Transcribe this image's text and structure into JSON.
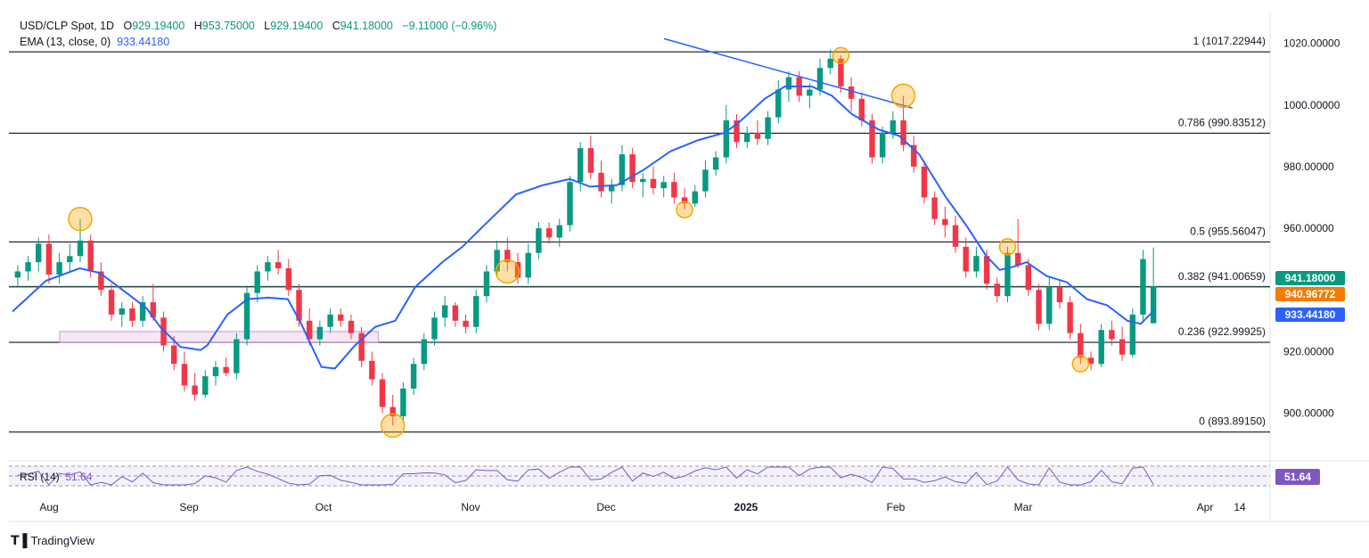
{
  "header": {
    "symbol_line": "USD/CLP Spot, 1D",
    "o_label": "O",
    "o_value": "929.19400",
    "h_label": "H",
    "h_value": "953.75000",
    "l_label": "L",
    "l_value": "929.19400",
    "c_label": "C",
    "c_value": "941.18000",
    "change": "−9.11000 (−0.96%)",
    "ema_label": "EMA (13, close, 0)",
    "ema_value": "933.44180"
  },
  "rsi": {
    "label": "RSI (14)",
    "value": "51.64",
    "tag": "51.64"
  },
  "price_tags": {
    "close": "941.18000",
    "mid": "940.96772",
    "ema": "933.44180"
  },
  "colors": {
    "up": "#089981",
    "down": "#f23645",
    "ema": "#2962ff",
    "rsi": "#7e57c2",
    "circle": "#f7a600",
    "tag_mid": "#f57c00"
  },
  "brand": {
    "name": "TradingView"
  },
  "chart_data": {
    "type": "candlestick",
    "y_axis_ticks": [
      "1020.00000",
      "1000.00000",
      "980.00000",
      "960.00000",
      "920.00000",
      "900.00000"
    ],
    "x_axis_labels": [
      "Aug",
      "Sep",
      "Oct",
      "Nov",
      "Dec",
      "2025",
      "Feb",
      "Mar",
      "Apr",
      "14"
    ],
    "ylim": [
      886,
      1030
    ],
    "fib_levels": [
      {
        "label": "1 (1017.22944)",
        "value": 1017.22944
      },
      {
        "label": "0.786 (990.83512)",
        "value": 990.83512
      },
      {
        "label": "0.5 (955.56047)",
        "value": 955.56047
      },
      {
        "label": "0.382 (941.00659)",
        "value": 941.00659
      },
      {
        "label": "0.236 (922.99925)",
        "value": 922.99925
      },
      {
        "label": "0 (893.89150)",
        "value": 893.8915
      }
    ],
    "close_line": 941.18,
    "support_box": {
      "x_from": 0.15,
      "x_to": 0.55,
      "y_low": 923,
      "y_high": 926.5
    },
    "trendline": {
      "from": [
        0.97,
        1021.5
      ],
      "to": [
        1.34,
        999
      ]
    },
    "ema_path": [
      [
        0,
        933
      ],
      [
        0.05,
        943
      ],
      [
        0.1,
        947
      ],
      [
        0.13,
        945.5
      ],
      [
        0.17,
        939
      ],
      [
        0.2,
        934
      ],
      [
        0.22,
        928
      ],
      [
        0.25,
        921.5
      ],
      [
        0.28,
        920.5
      ],
      [
        0.29,
        922
      ],
      [
        0.32,
        932
      ],
      [
        0.35,
        937
      ],
      [
        0.38,
        937.5
      ],
      [
        0.41,
        937
      ],
      [
        0.43,
        929
      ],
      [
        0.46,
        915
      ],
      [
        0.48,
        914.5
      ],
      [
        0.51,
        922
      ],
      [
        0.54,
        928
      ],
      [
        0.57,
        930
      ],
      [
        0.6,
        941
      ],
      [
        0.64,
        949
      ],
      [
        0.67,
        954
      ],
      [
        0.7,
        960.5
      ],
      [
        0.75,
        971
      ],
      [
        0.79,
        974
      ],
      [
        0.83,
        976
      ],
      [
        0.86,
        973.5
      ],
      [
        0.9,
        974
      ],
      [
        0.94,
        979
      ],
      [
        0.98,
        985
      ],
      [
        1.02,
        988.5
      ],
      [
        1.06,
        991
      ],
      [
        1.08,
        994
      ],
      [
        1.12,
        1002
      ],
      [
        1.15,
        1006
      ],
      [
        1.19,
        1006
      ],
      [
        1.22,
        1003
      ],
      [
        1.25,
        997
      ],
      [
        1.29,
        992
      ],
      [
        1.32,
        990
      ],
      [
        1.35,
        984
      ],
      [
        1.39,
        970
      ],
      [
        1.42,
        961
      ],
      [
        1.45,
        951
      ],
      [
        1.47,
        946.5
      ],
      [
        1.49,
        947.5
      ],
      [
        1.51,
        949
      ],
      [
        1.54,
        944.5
      ],
      [
        1.57,
        942.5
      ],
      [
        1.6,
        937
      ],
      [
        1.63,
        935
      ],
      [
        1.66,
        930
      ],
      [
        1.68,
        929
      ],
      [
        1.7,
        933.4
      ]
    ],
    "candles": [
      {
        "o": 944,
        "h": 948,
        "l": 941,
        "c": 946
      },
      {
        "o": 946,
        "h": 951,
        "l": 943,
        "c": 949
      },
      {
        "o": 949,
        "h": 957,
        "l": 946,
        "c": 955
      },
      {
        "o": 955,
        "h": 958,
        "l": 942,
        "c": 945
      },
      {
        "o": 945,
        "h": 952,
        "l": 942,
        "c": 949
      },
      {
        "o": 949,
        "h": 955,
        "l": 946,
        "c": 951
      },
      {
        "o": 951,
        "h": 963,
        "l": 949,
        "c": 956
      },
      {
        "o": 956,
        "h": 958,
        "l": 944,
        "c": 946
      },
      {
        "o": 946,
        "h": 949,
        "l": 938,
        "c": 940
      },
      {
        "o": 940,
        "h": 942,
        "l": 930,
        "c": 932
      },
      {
        "o": 932,
        "h": 936,
        "l": 928,
        "c": 934
      },
      {
        "o": 934,
        "h": 936,
        "l": 928,
        "c": 930
      },
      {
        "o": 930,
        "h": 938,
        "l": 928,
        "c": 936
      },
      {
        "o": 936,
        "h": 942,
        "l": 930,
        "c": 931
      },
      {
        "o": 931,
        "h": 933,
        "l": 920,
        "c": 922
      },
      {
        "o": 922,
        "h": 925,
        "l": 914,
        "c": 916
      },
      {
        "o": 916,
        "h": 920,
        "l": 907,
        "c": 909
      },
      {
        "o": 909,
        "h": 913,
        "l": 904,
        "c": 906
      },
      {
        "o": 906,
        "h": 914,
        "l": 905,
        "c": 912
      },
      {
        "o": 912,
        "h": 917,
        "l": 909,
        "c": 915
      },
      {
        "o": 915,
        "h": 918,
        "l": 912,
        "c": 913
      },
      {
        "o": 913,
        "h": 926,
        "l": 911,
        "c": 924
      },
      {
        "o": 924,
        "h": 941,
        "l": 922,
        "c": 939
      },
      {
        "o": 939,
        "h": 948,
        "l": 936,
        "c": 946
      },
      {
        "o": 946,
        "h": 951,
        "l": 943,
        "c": 949
      },
      {
        "o": 949,
        "h": 953,
        "l": 945,
        "c": 947
      },
      {
        "o": 947,
        "h": 950,
        "l": 938,
        "c": 940
      },
      {
        "o": 940,
        "h": 942,
        "l": 928,
        "c": 930
      },
      {
        "o": 930,
        "h": 934,
        "l": 922,
        "c": 924
      },
      {
        "o": 924,
        "h": 930,
        "l": 922,
        "c": 928
      },
      {
        "o": 928,
        "h": 934,
        "l": 926,
        "c": 932
      },
      {
        "o": 932,
        "h": 934,
        "l": 928,
        "c": 930
      },
      {
        "o": 930,
        "h": 932,
        "l": 924,
        "c": 926
      },
      {
        "o": 926,
        "h": 928,
        "l": 915,
        "c": 917
      },
      {
        "o": 917,
        "h": 920,
        "l": 909,
        "c": 911
      },
      {
        "o": 911,
        "h": 913,
        "l": 900,
        "c": 902
      },
      {
        "o": 902,
        "h": 906,
        "l": 896,
        "c": 899
      },
      {
        "o": 899,
        "h": 910,
        "l": 897,
        "c": 908
      },
      {
        "o": 908,
        "h": 918,
        "l": 906,
        "c": 916
      },
      {
        "o": 916,
        "h": 926,
        "l": 914,
        "c": 924
      },
      {
        "o": 924,
        "h": 933,
        "l": 922,
        "c": 931
      },
      {
        "o": 931,
        "h": 938,
        "l": 928,
        "c": 935
      },
      {
        "o": 935,
        "h": 936,
        "l": 928,
        "c": 930
      },
      {
        "o": 930,
        "h": 932,
        "l": 926,
        "c": 928
      },
      {
        "o": 928,
        "h": 940,
        "l": 926,
        "c": 938
      },
      {
        "o": 938,
        "h": 948,
        "l": 936,
        "c": 946
      },
      {
        "o": 946,
        "h": 956,
        "l": 944,
        "c": 953
      },
      {
        "o": 953,
        "h": 957,
        "l": 946,
        "c": 949
      },
      {
        "o": 949,
        "h": 952,
        "l": 942,
        "c": 944
      },
      {
        "o": 944,
        "h": 955,
        "l": 942,
        "c": 952
      },
      {
        "o": 952,
        "h": 962,
        "l": 950,
        "c": 960
      },
      {
        "o": 960,
        "h": 962,
        "l": 955,
        "c": 957
      },
      {
        "o": 957,
        "h": 963,
        "l": 954,
        "c": 961
      },
      {
        "o": 961,
        "h": 977,
        "l": 959,
        "c": 975
      },
      {
        "o": 975,
        "h": 988,
        "l": 972,
        "c": 986
      },
      {
        "o": 986,
        "h": 990,
        "l": 976,
        "c": 978
      },
      {
        "o": 978,
        "h": 982,
        "l": 970,
        "c": 972
      },
      {
        "o": 972,
        "h": 976,
        "l": 968,
        "c": 974
      },
      {
        "o": 974,
        "h": 987,
        "l": 972,
        "c": 984
      },
      {
        "o": 984,
        "h": 986,
        "l": 973,
        "c": 975
      },
      {
        "o": 975,
        "h": 978,
        "l": 970,
        "c": 976
      },
      {
        "o": 976,
        "h": 980,
        "l": 971,
        "c": 973
      },
      {
        "o": 973,
        "h": 977,
        "l": 970,
        "c": 975
      },
      {
        "o": 975,
        "h": 978,
        "l": 968,
        "c": 970
      },
      {
        "o": 970,
        "h": 973,
        "l": 966,
        "c": 968
      },
      {
        "o": 968,
        "h": 974,
        "l": 967,
        "c": 972
      },
      {
        "o": 972,
        "h": 982,
        "l": 970,
        "c": 979
      },
      {
        "o": 979,
        "h": 985,
        "l": 977,
        "c": 983
      },
      {
        "o": 983,
        "h": 1000,
        "l": 981,
        "c": 995
      },
      {
        "o": 995,
        "h": 997,
        "l": 986,
        "c": 988
      },
      {
        "o": 988,
        "h": 993,
        "l": 986,
        "c": 991
      },
      {
        "o": 991,
        "h": 995,
        "l": 987,
        "c": 989
      },
      {
        "o": 989,
        "h": 998,
        "l": 987,
        "c": 996
      },
      {
        "o": 996,
        "h": 1008,
        "l": 994,
        "c": 1005
      },
      {
        "o": 1005,
        "h": 1011,
        "l": 1001,
        "c": 1009
      },
      {
        "o": 1009,
        "h": 1011,
        "l": 1001,
        "c": 1003
      },
      {
        "o": 1003,
        "h": 1007,
        "l": 999,
        "c": 1005
      },
      {
        "o": 1005,
        "h": 1015,
        "l": 1003,
        "c": 1012
      },
      {
        "o": 1012,
        "h": 1018,
        "l": 1010,
        "c": 1015
      },
      {
        "o": 1015,
        "h": 1016,
        "l": 1004,
        "c": 1006
      },
      {
        "o": 1006,
        "h": 1009,
        "l": 998,
        "c": 1002
      },
      {
        "o": 1002,
        "h": 1004,
        "l": 993,
        "c": 995
      },
      {
        "o": 995,
        "h": 997,
        "l": 981,
        "c": 983
      },
      {
        "o": 983,
        "h": 993,
        "l": 981,
        "c": 991
      },
      {
        "o": 991,
        "h": 998,
        "l": 989,
        "c": 995
      },
      {
        "o": 995,
        "h": 1003,
        "l": 985,
        "c": 987
      },
      {
        "o": 987,
        "h": 990,
        "l": 978,
        "c": 980
      },
      {
        "o": 980,
        "h": 982,
        "l": 968,
        "c": 970
      },
      {
        "o": 970,
        "h": 972,
        "l": 961,
        "c": 963
      },
      {
        "o": 963,
        "h": 967,
        "l": 957,
        "c": 961
      },
      {
        "o": 961,
        "h": 964,
        "l": 952,
        "c": 954
      },
      {
        "o": 954,
        "h": 957,
        "l": 944,
        "c": 946
      },
      {
        "o": 946,
        "h": 954,
        "l": 944,
        "c": 951
      },
      {
        "o": 951,
        "h": 953,
        "l": 940,
        "c": 942
      },
      {
        "o": 942,
        "h": 944,
        "l": 936,
        "c": 938
      },
      {
        "o": 938,
        "h": 954,
        "l": 936,
        "c": 952
      },
      {
        "o": 952,
        "h": 963,
        "l": 947,
        "c": 948
      },
      {
        "o": 948,
        "h": 950,
        "l": 938,
        "c": 940
      },
      {
        "o": 940,
        "h": 942,
        "l": 927,
        "c": 929
      },
      {
        "o": 929,
        "h": 944,
        "l": 927,
        "c": 941
      },
      {
        "o": 941,
        "h": 943,
        "l": 934,
        "c": 936
      },
      {
        "o": 936,
        "h": 938,
        "l": 924,
        "c": 926
      },
      {
        "o": 926,
        "h": 929,
        "l": 916,
        "c": 918
      },
      {
        "o": 918,
        "h": 920,
        "l": 914,
        "c": 916
      },
      {
        "o": 916,
        "h": 929,
        "l": 915,
        "c": 927
      },
      {
        "o": 927,
        "h": 930,
        "l": 922,
        "c": 924
      },
      {
        "o": 924,
        "h": 928,
        "l": 917,
        "c": 919
      },
      {
        "o": 919,
        "h": 934,
        "l": 918,
        "c": 932
      },
      {
        "o": 932,
        "h": 953,
        "l": 930,
        "c": 950
      },
      {
        "o": 929.194,
        "h": 953.75,
        "l": 929.194,
        "c": 941.18
      }
    ],
    "markers": [
      {
        "candle": 6,
        "pos": "high"
      },
      {
        "candle": 36,
        "pos": "low"
      },
      {
        "candle": 47,
        "pos": "low"
      },
      {
        "candle": 64,
        "pos": "low"
      },
      {
        "candle": 79,
        "pos": "high"
      },
      {
        "candle": 85,
        "pos": "high"
      },
      {
        "candle": 95,
        "pos": "high"
      },
      {
        "candle": 102,
        "pos": "low"
      }
    ]
  }
}
